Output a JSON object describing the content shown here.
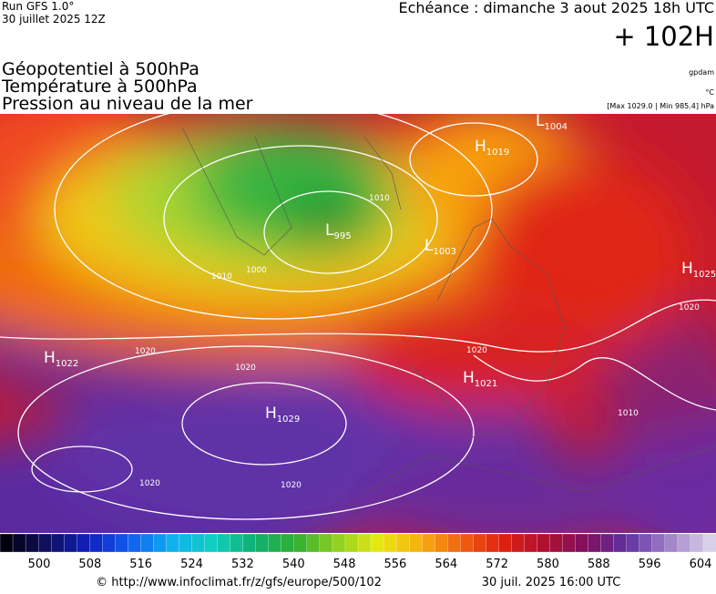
{
  "header": {
    "run": "Run GFS 1.0°",
    "date": "30 juillet 2025 12Z",
    "echeance": "Echéance : dimanche 3 aout 2025 18h UTC",
    "lead": "+ 102H"
  },
  "titles": [
    "Géopotentiel à 500hPa",
    "Température à 500hPa",
    "Pression au niveau de la mer"
  ],
  "units": {
    "geopotential": "gpdam",
    "temperature": "°C",
    "pressure": "[Max 1029.0 | Min 985.4] hPa"
  },
  "pressure_centers": [
    {
      "kind": "L",
      "value": "1004"
    },
    {
      "kind": "H",
      "value": "1019"
    },
    {
      "kind": "L",
      "value": "995"
    },
    {
      "kind": "L",
      "value": "1003"
    },
    {
      "kind": "H",
      "value": "1025"
    },
    {
      "kind": "H",
      "value": "1022"
    },
    {
      "kind": "H",
      "value": "1021"
    },
    {
      "kind": "H",
      "value": "1029"
    }
  ],
  "isobar_labels": [
    "1000",
    "1010",
    "1020",
    "1020",
    "1020",
    "1020",
    "1020",
    "1010",
    "1020",
    "1010"
  ],
  "colorbar_labels": [
    "500",
    "508",
    "516",
    "524",
    "532",
    "540",
    "548",
    "556",
    "564",
    "572",
    "580",
    "588",
    "596",
    "604"
  ],
  "footer": {
    "source": "© http://www.infoclimat.fr/z/gfs/europe/500/102",
    "issued": "30 juil. 2025 16:00 UTC"
  }
}
